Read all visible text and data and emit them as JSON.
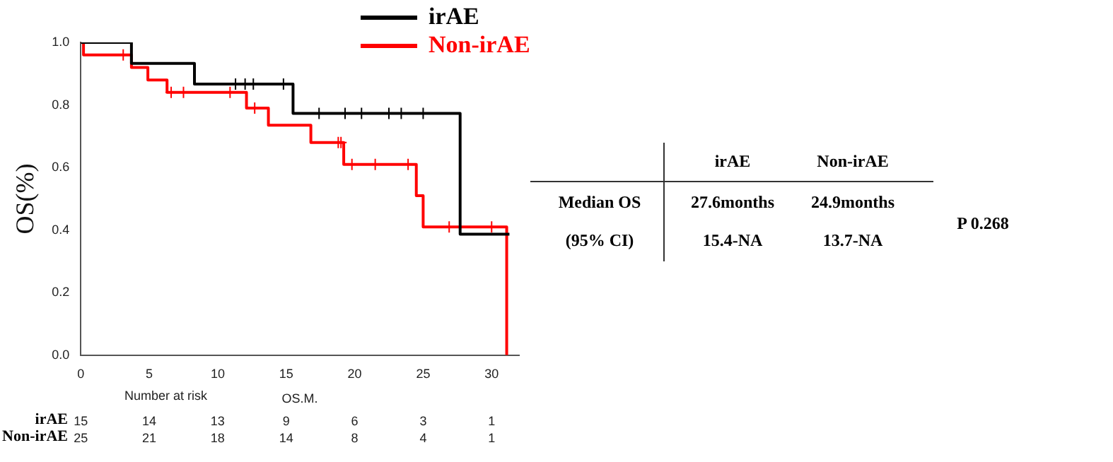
{
  "chart_data": {
    "type": "step",
    "ylabel": "OS(%)",
    "xlabel": "OS.M.",
    "xlim": [
      0,
      32
    ],
    "xticks": [
      0,
      5,
      10,
      15,
      20,
      25,
      30
    ],
    "ylim": [
      0,
      1
    ],
    "yticks": [
      {
        "value": 0,
        "label": "0.0"
      },
      {
        "value": 0.2,
        "label": "0.2"
      },
      {
        "value": 0.4,
        "label": "0.4"
      },
      {
        "value": 0.6,
        "label": "0.6"
      },
      {
        "value": 0.8,
        "label": "0.8"
      },
      {
        "value": 1,
        "label": "1.0"
      }
    ],
    "grid": false,
    "legend": "top right",
    "series": [
      {
        "name": "irAE",
        "type": "step",
        "color": "#000000",
        "marker": "none",
        "x": [
          0,
          3.7,
          8.3,
          15.5,
          27.7,
          31.3
        ],
        "values": [
          1,
          0.933,
          0.867,
          0.773,
          0.387,
          0.387
        ]
      },
      {
        "name": "Non-irAE",
        "type": "step",
        "color": "#ff0000",
        "marker": "none",
        "x": [
          0,
          0.2,
          3.7,
          4.9,
          6.3,
          12.1,
          13.7,
          16.8,
          19.2,
          24.5,
          25.0,
          31.1
        ],
        "values": [
          1,
          0.96,
          0.92,
          0.88,
          0.84,
          0.79,
          0.735,
          0.68,
          0.61,
          0.51,
          0.41,
          0
        ]
      },
      {
        "type": "scatter",
        "color": "#000000",
        "marker": "cross",
        "x": [
          11.3,
          12.0,
          12.6,
          14.8,
          17.4,
          19.3,
          20.5,
          22.5,
          23.4,
          25.0
        ],
        "values": [
          0.867,
          0.867,
          0.867,
          0.867,
          0.773,
          0.773,
          0.773,
          0.773,
          0.773,
          0.773
        ]
      },
      {
        "type": "scatter",
        "color": "#ff0000",
        "marker": "cross",
        "x": [
          3.1,
          6.6,
          7.5,
          10.9,
          12.7,
          18.8,
          19.0,
          19.8,
          21.5,
          23.9,
          26.9,
          30.0
        ],
        "values": [
          0.96,
          0.84,
          0.84,
          0.84,
          0.79,
          0.68,
          0.68,
          0.61,
          0.61,
          0.61,
          0.41,
          0.41
        ]
      }
    ],
    "annotations": [
      "Number at risk",
      "irAE",
      "15",
      "14",
      "13",
      "9",
      "6",
      "3",
      "1",
      "Non-irAE",
      "25",
      "21",
      "18",
      "14",
      "8",
      "4",
      "1",
      "irAE",
      "Non-irAE",
      "Median OS",
      "27.6months",
      "24.9months",
      "(95% CI)",
      "15.4-NA",
      "13.7-NA",
      "P 0.268"
    ]
  }
}
